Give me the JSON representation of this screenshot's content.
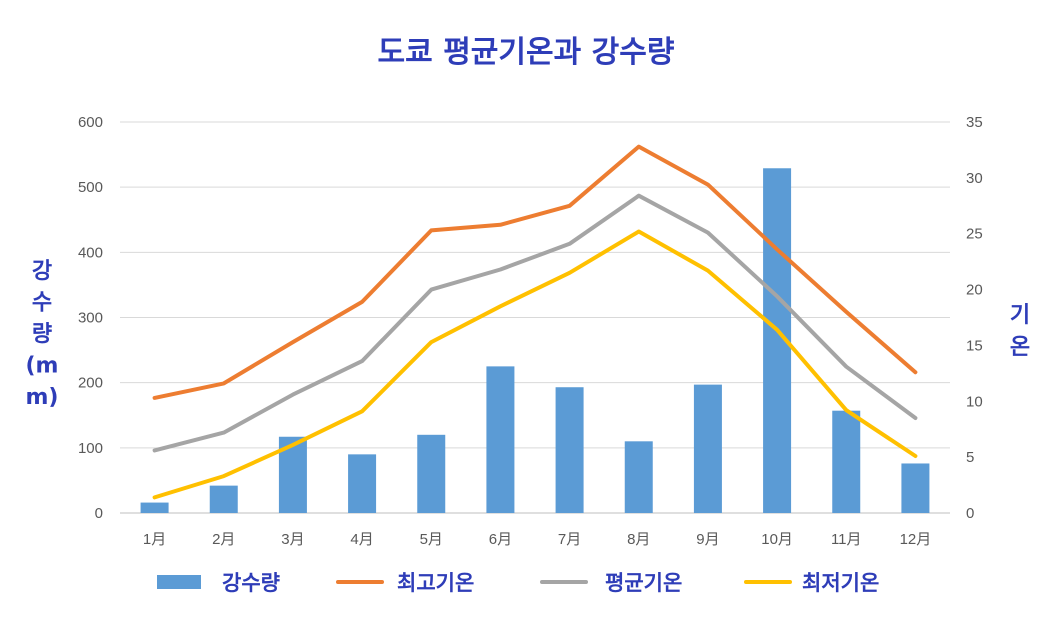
{
  "chart_data": {
    "type": "bar+line",
    "title": "도쿄 평균기온과 강수량",
    "title_color": "#2e3db8",
    "categories": [
      "1月",
      "2月",
      "3月",
      "4月",
      "5月",
      "6月",
      "7月",
      "8月",
      "9月",
      "10月",
      "11月",
      "12月"
    ],
    "y_left": {
      "label_lines": [
        "강",
        "수",
        "량",
        "(m",
        "m)"
      ],
      "range": [
        0,
        600
      ],
      "ticks": [
        "0",
        "100",
        "200",
        "300",
        "400",
        "500",
        "600"
      ]
    },
    "y_right": {
      "label_lines": [
        "기",
        "온"
      ],
      "range": [
        0,
        35
      ],
      "ticks": [
        "0",
        "5",
        "10",
        "15",
        "20",
        "25",
        "30",
        "35"
      ]
    },
    "series": [
      {
        "name": "강수량",
        "kind": "bar",
        "axis": "left",
        "color": "#5b9bd5",
        "values": [
          16,
          42,
          117,
          90,
          120,
          225,
          193,
          110,
          197,
          529,
          157,
          76
        ]
      },
      {
        "name": "최고기온",
        "kind": "line",
        "axis": "right",
        "color": "#ed7d31",
        "values": [
          10.3,
          11.6,
          15.3,
          18.9,
          25.3,
          25.8,
          27.5,
          32.8,
          29.4,
          23.6,
          18.0,
          12.6
        ]
      },
      {
        "name": "평균기온",
        "kind": "line",
        "axis": "right",
        "color": "#a5a5a5",
        "values": [
          5.6,
          7.2,
          10.6,
          13.6,
          20.0,
          21.8,
          24.1,
          28.4,
          25.1,
          19.4,
          13.1,
          8.5
        ]
      },
      {
        "name": "최저기온",
        "kind": "line",
        "axis": "right",
        "color": "#ffc000",
        "values": [
          1.4,
          3.3,
          6.1,
          9.1,
          15.3,
          18.5,
          21.5,
          25.2,
          21.7,
          16.4,
          9.2,
          5.1
        ]
      }
    ],
    "grid": true,
    "legend_position": "bottom",
    "label_color": "#2e3db8"
  }
}
